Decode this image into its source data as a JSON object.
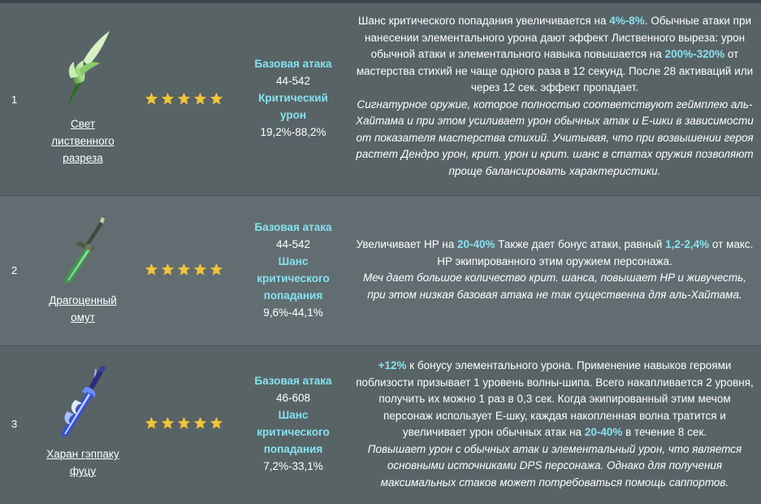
{
  "colors": {
    "highlight": "#86e2ef",
    "star": "#f3c437",
    "row_dark": "#586366",
    "row_light": "#626d71"
  },
  "rows": [
    {
      "rank": "1",
      "weapon_name": "Свет лиственного разреза",
      "icon": "green-sword-icon",
      "stars": 5,
      "stat1_label": "Базовая атака",
      "stat1_value": "44-542",
      "stat2_label": "Критический урон",
      "stat2_value": "19,2%-88,2%",
      "desc": {
        "p1": "Шанс критического попадания увеличивается на ",
        "h1": "4%-8%",
        "p2": ". Обычные атаки при нанесении элементального урона дают эффект Лиственного выреза: урон обычной атаки и элементального навыка повышается на ",
        "h2": "200%-320%",
        "p3": " от мастерства стихий не чаще одного раза в 12 секунд. После 28 активаций или через 12 сек. эффект пропадает.",
        "italic": "Сигнатурное оружие, которое полностью соответствуют геймплею аль-Хайтама и при этом усиливает урон обычных атак и Е-шки в зависимости от показателя мастерства стихий. Учитывая, что при возвышении героя растет Дендро урон, крит. урон и крит. шанс в статах оружия позволяют проще балансировать характеристики."
      }
    },
    {
      "rank": "2",
      "weapon_name": "Драгоценный омут",
      "icon": "jade-sword-icon",
      "stars": 5,
      "stat1_label": "Базовая атака",
      "stat1_value": "44-542",
      "stat2_label": "Шанс критического попадания",
      "stat2_value": "9,6%-44,1%",
      "desc": {
        "p1": "Увеличивает HP на ",
        "h1": "20-40%",
        "p2": " Также дает бонус атаки, равный ",
        "h2": "1,2-2,4%",
        "p3": " от макс. HP экипированного этим оружием персонажа.",
        "italic": "Меч дает большое количество крит. шанса, повышает HP и живучесть, при этом низкая базовая атака не так существенна для аль-Хайтама."
      }
    },
    {
      "rank": "3",
      "weapon_name": "Харан гэппаку фуцу",
      "icon": "blue-sword-icon",
      "stars": 5,
      "stat1_label": "Базовая атака",
      "stat1_value": "46-608",
      "stat2_label": "Шанс критического попадания",
      "stat2_value": "7,2%-33,1%",
      "desc": {
        "p1": "",
        "h1": "+12%",
        "p2": " к бонусу элементального урона. Применение навыков героями поблизости призывает 1 уровень волны-шипа. Всего накапливается 2 уровня, получить их можно 1 раз в 0,3 сек. Когда экипированный этим мечом персонаж использует Е-шку, каждая накопленная волна тратится и увеличивает урон обычных атак на ",
        "h2": "20-40%",
        "p3": " в течение 8 сек.",
        "italic": "Повышает урон с обычных атак и элементальный урон, что является основными источниками DPS персонажа. Однако для получения максимальных стаков может потребоваться помощь саппортов."
      }
    }
  ]
}
